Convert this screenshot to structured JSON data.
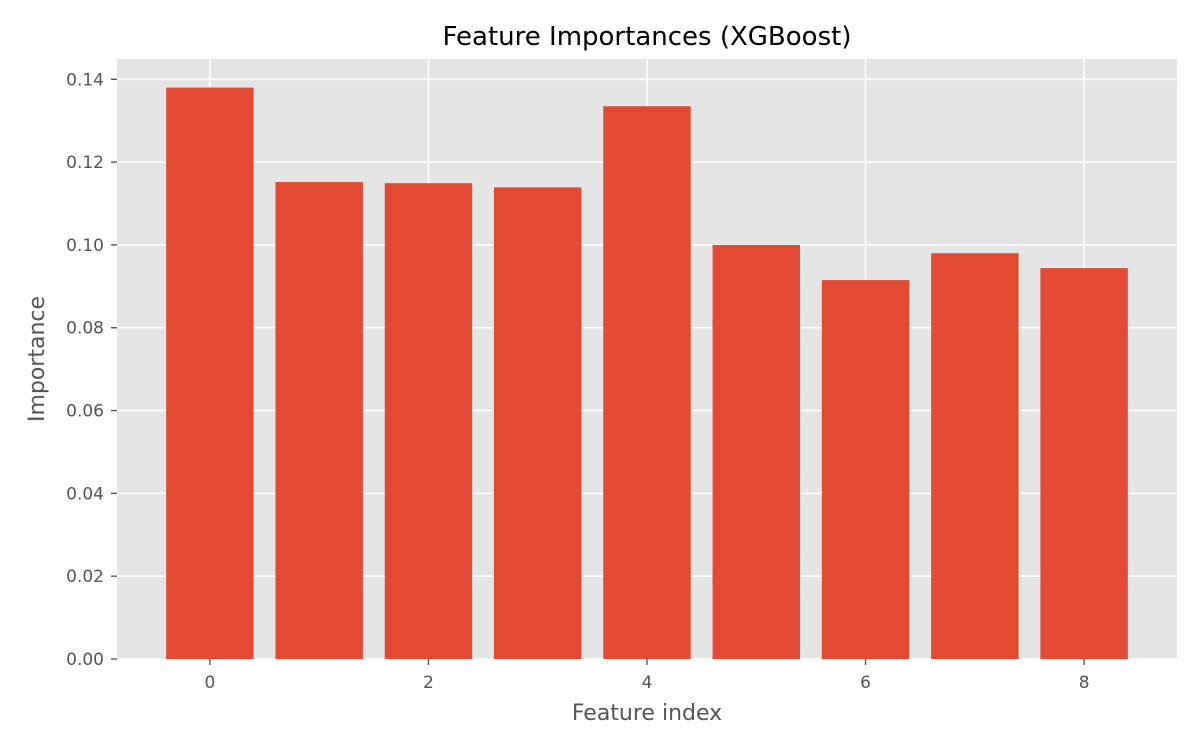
{
  "chart_data": {
    "type": "bar",
    "title": "Feature Importances (XGBoost)",
    "xlabel": "Feature index",
    "ylabel": "Importance",
    "categories": [
      0,
      1,
      2,
      3,
      4,
      5,
      6,
      7,
      8
    ],
    "values": [
      0.138,
      0.1152,
      0.1149,
      0.1139,
      0.1335,
      0.1,
      0.0915,
      0.098,
      0.0944
    ],
    "xlim": [
      -0.85,
      8.85
    ],
    "ylim": [
      0,
      0.1449
    ],
    "xticks": [
      0,
      2,
      4,
      6,
      8
    ],
    "xtick_labels": [
      "0",
      "2",
      "4",
      "6",
      "8"
    ],
    "yticks": [
      0.0,
      0.02,
      0.04,
      0.06,
      0.08,
      0.1,
      0.12,
      0.14
    ],
    "ytick_labels": [
      "0.00",
      "0.02",
      "0.04",
      "0.06",
      "0.08",
      "0.10",
      "0.12",
      "0.14"
    ],
    "grid": true,
    "colors": {
      "bar": "#E24A33",
      "plot_background": "#E5E5E5",
      "grid": "#FFFFFF",
      "text": "#555555"
    }
  }
}
